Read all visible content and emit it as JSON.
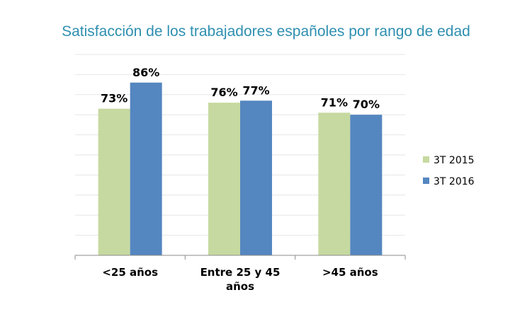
{
  "chart_data": {
    "type": "bar",
    "title": "Satisfacción de los trabajadores españoles por rango de edad",
    "categories": [
      [
        "<25 años"
      ],
      [
        "Entre 25 y 45",
        "años"
      ],
      [
        ">45 años"
      ]
    ],
    "series": [
      {
        "name": "3T 2015",
        "color": "#c6d9a0",
        "values": [
          73,
          76,
          71
        ],
        "labels": [
          "73%",
          "76%",
          "71%"
        ]
      },
      {
        "name": "3T 2016",
        "color": "#5486c0",
        "values": [
          86,
          77,
          70
        ],
        "labels": [
          "86%",
          "77%",
          "70%"
        ]
      }
    ],
    "ylim": [
      0,
      100
    ],
    "grid": true,
    "legend_position": "right"
  }
}
